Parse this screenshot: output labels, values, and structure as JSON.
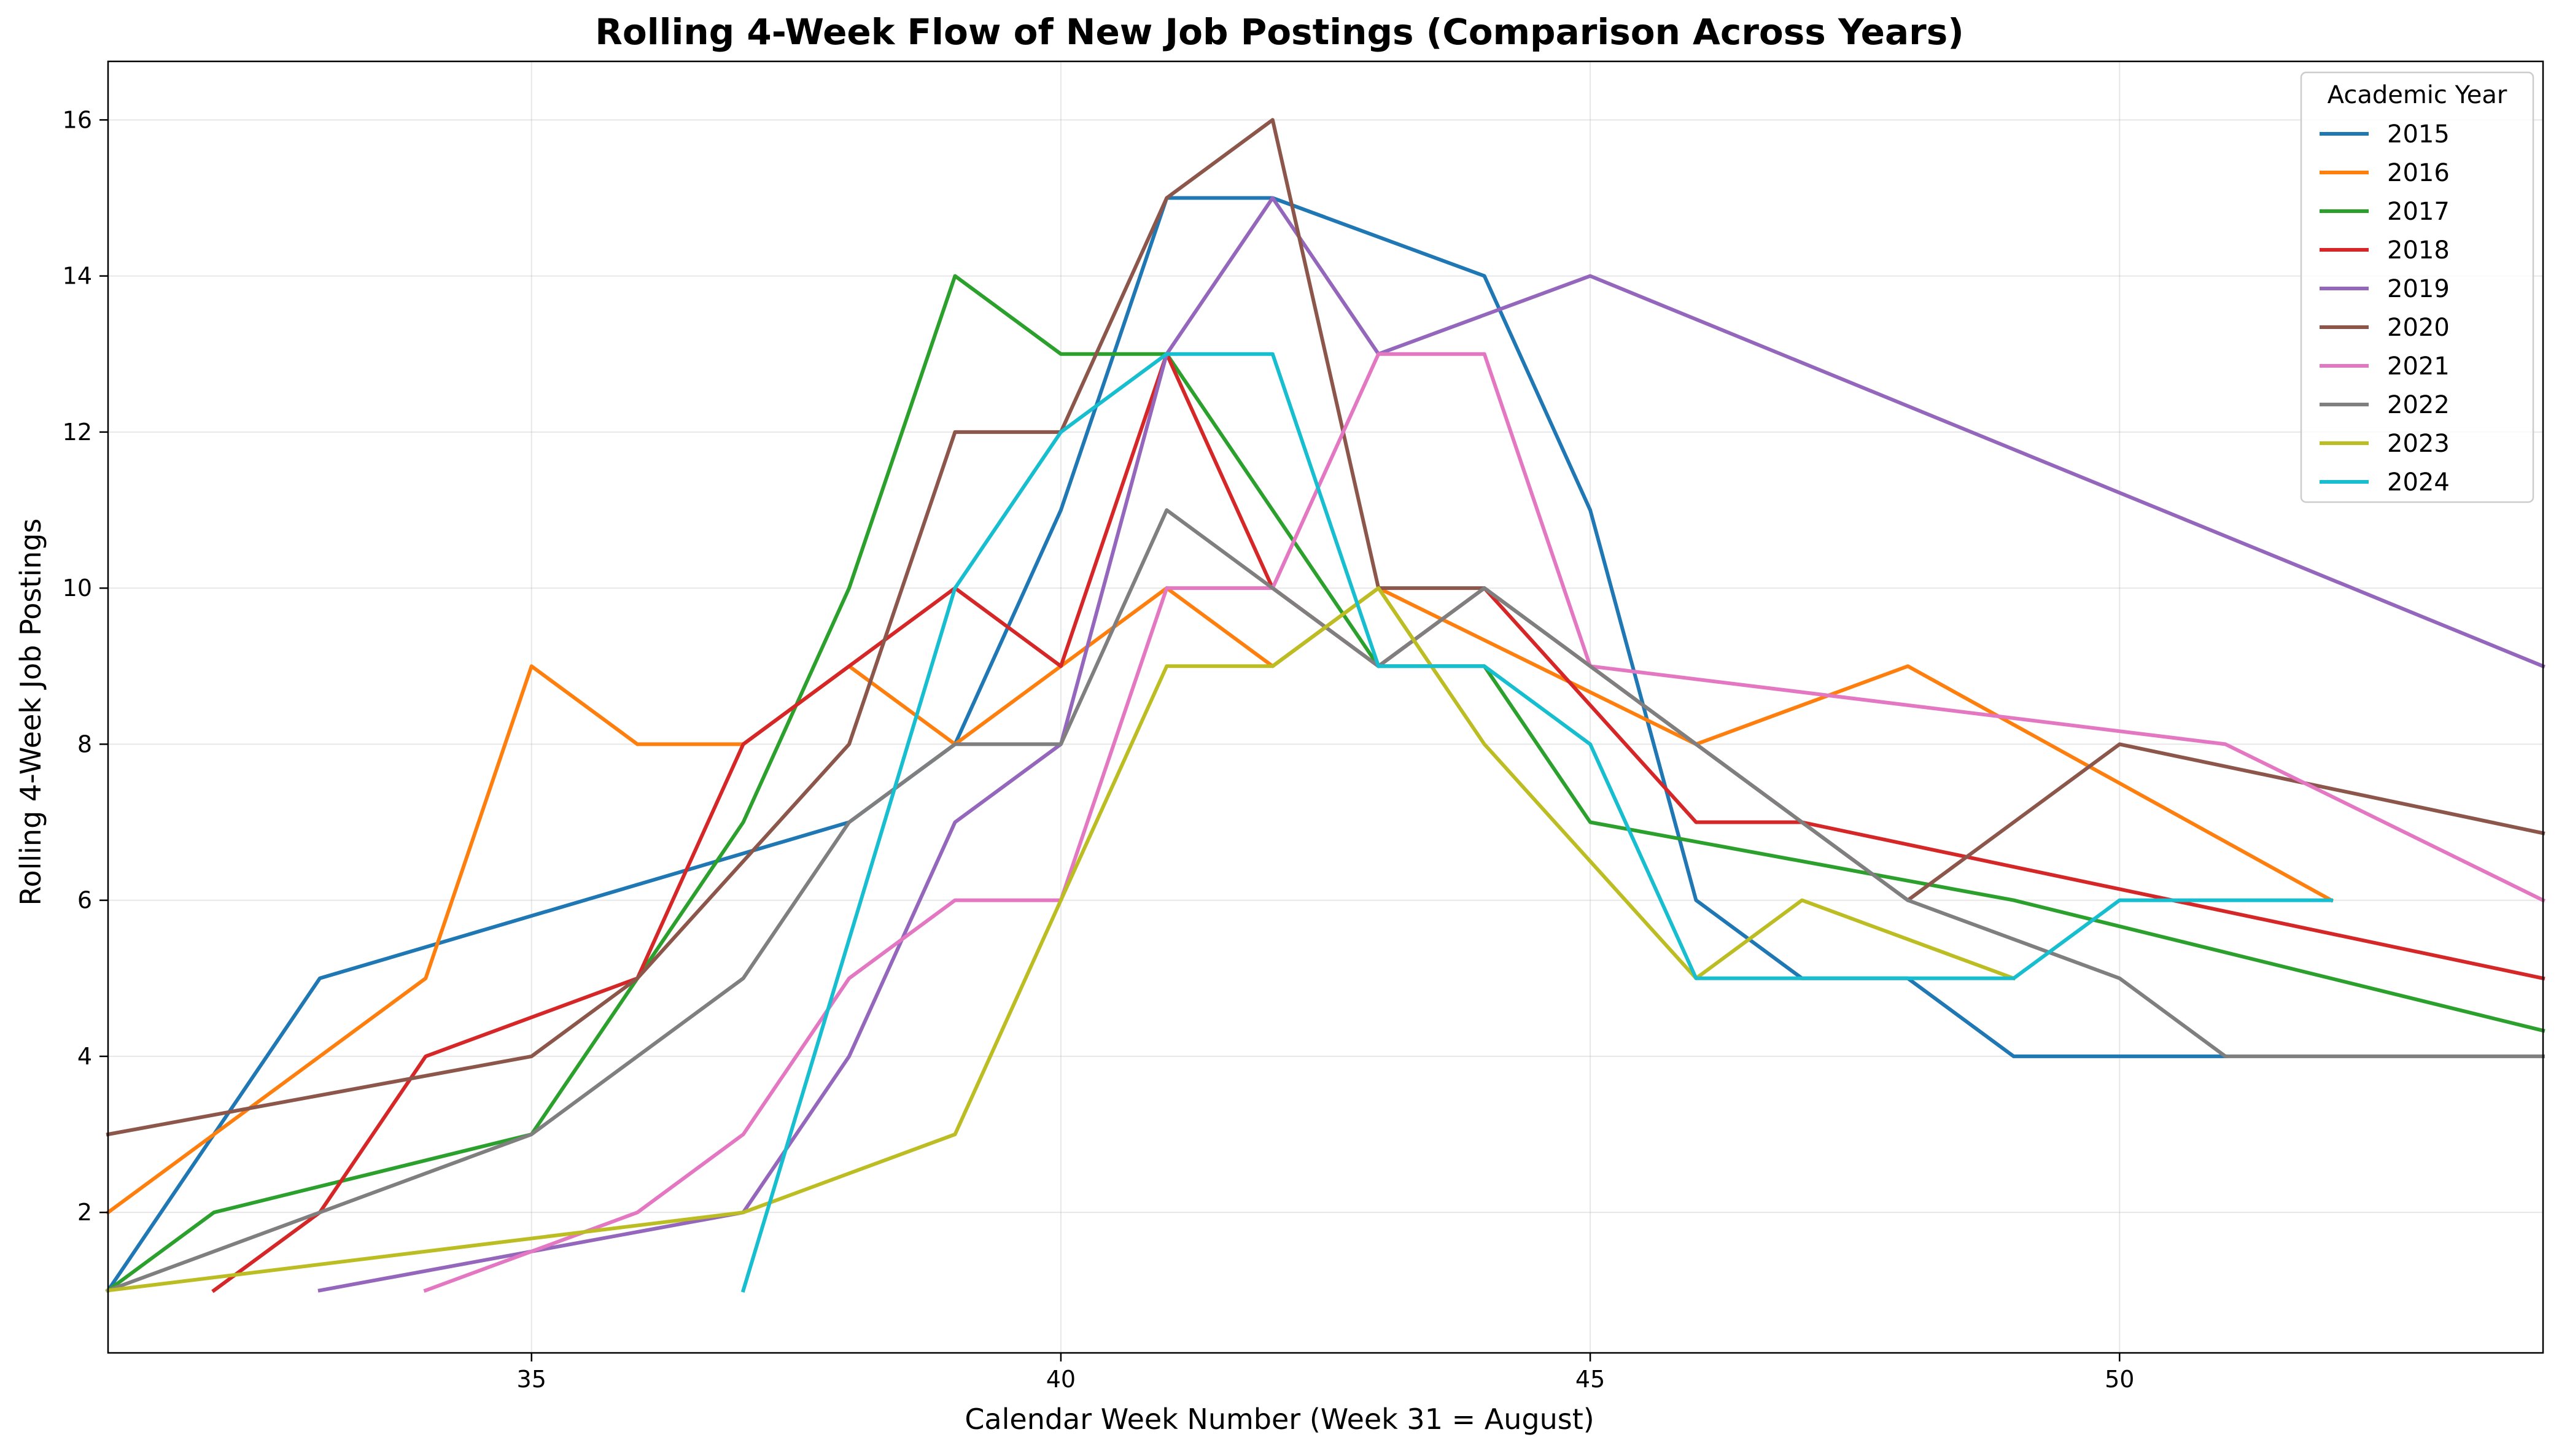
{
  "chart_data": {
    "type": "line",
    "title": "Rolling 4-Week Flow of New Job Postings (Comparison Across Years)",
    "xlabel": "Calendar Week Number (Week 31 = August)",
    "ylabel": "Rolling 4-Week Job Postings",
    "xlim": [
      31,
      54
    ],
    "ylim": [
      0.2,
      16.75
    ],
    "xticks": [
      35,
      40,
      45,
      50
    ],
    "yticks": [
      2,
      4,
      6,
      8,
      10,
      12,
      14,
      16
    ],
    "grid": true,
    "legend": {
      "title": "Academic Year",
      "placement": "top-right"
    },
    "series": [
      {
        "name": "2015",
        "color": "#1f77b4",
        "x": [
          31,
          32,
          33,
          38,
          39,
          40,
          41,
          42,
          44,
          45,
          46,
          47,
          48,
          49,
          51
        ],
        "y": [
          1,
          3,
          5,
          7,
          8,
          11,
          15,
          15,
          14,
          11,
          6,
          5,
          5,
          4,
          4
        ]
      },
      {
        "name": "2016",
        "color": "#ff7f0e",
        "x": [
          31,
          34,
          35,
          36,
          37,
          38,
          39,
          41,
          42,
          43,
          46,
          48,
          52
        ],
        "y": [
          2,
          5,
          9,
          8,
          8,
          9,
          8,
          10,
          9,
          10,
          8,
          9,
          6
        ]
      },
      {
        "name": "2017",
        "color": "#2ca02c",
        "x": [
          31,
          32,
          35,
          36,
          37,
          38,
          39,
          40,
          41,
          43,
          44,
          45,
          49,
          54
        ],
        "y": [
          1,
          2,
          3,
          5,
          7,
          10,
          14,
          13,
          13,
          9,
          9,
          7,
          6,
          4.33
        ]
      },
      {
        "name": "2018",
        "color": "#d62728",
        "x": [
          32,
          33,
          34,
          36,
          37,
          39,
          40,
          41,
          42,
          43,
          44,
          46,
          47,
          54
        ],
        "y": [
          1,
          2,
          4,
          5,
          8,
          10,
          9,
          13,
          10,
          9,
          10,
          7,
          7,
          5
        ]
      },
      {
        "name": "2019",
        "color": "#9467bd",
        "x": [
          33,
          37,
          38,
          39,
          40,
          41,
          42,
          43,
          45,
          54
        ],
        "y": [
          1,
          2,
          4,
          7,
          8,
          13,
          15,
          13,
          14,
          9
        ]
      },
      {
        "name": "2020",
        "color": "#8c564b",
        "x": [
          31,
          35,
          36,
          38,
          39,
          40,
          41,
          42,
          43,
          44,
          48,
          50,
          54
        ],
        "y": [
          3,
          4,
          5,
          8,
          12,
          12,
          15,
          16,
          10,
          10,
          6,
          8,
          6.86
        ]
      },
      {
        "name": "2021",
        "color": "#e377c2",
        "x": [
          34,
          36,
          37,
          38,
          39,
          40,
          41,
          42,
          43,
          44,
          45,
          51,
          54
        ],
        "y": [
          1,
          2,
          3,
          5,
          6,
          6,
          10,
          10,
          13,
          13,
          9,
          8,
          6
        ]
      },
      {
        "name": "2022",
        "color": "#7f7f7f",
        "x": [
          31,
          35,
          37,
          38,
          39,
          40,
          41,
          43,
          44,
          46,
          48,
          50,
          51,
          54
        ],
        "y": [
          1,
          3,
          5,
          7,
          8,
          8,
          11,
          9,
          10,
          8,
          6,
          5,
          4,
          4
        ]
      },
      {
        "name": "2023",
        "color": "#bcbd22",
        "x": [
          31,
          37,
          39,
          40,
          41,
          42,
          43,
          44,
          46,
          47,
          49
        ],
        "y": [
          1,
          2,
          3,
          6,
          9,
          9,
          10,
          8,
          5,
          6,
          5
        ]
      },
      {
        "name": "2024",
        "color": "#17becf",
        "x": [
          37,
          39,
          40,
          41,
          42,
          43,
          44,
          45,
          46,
          49,
          50,
          52
        ],
        "y": [
          1,
          10,
          12,
          13,
          13,
          9,
          9,
          8,
          5,
          5,
          6,
          6
        ]
      }
    ]
  }
}
